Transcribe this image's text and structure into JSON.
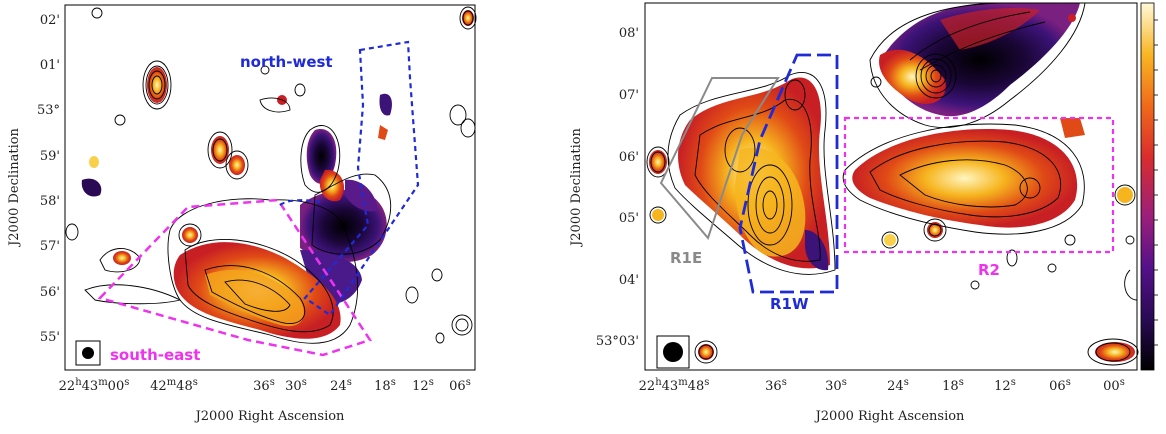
{
  "colors": {
    "blue": "#1f2bd6",
    "magenta": "#ee33ee",
    "grey": "#8a8a8a",
    "contour": "#000000"
  },
  "left_panel": {
    "y_ticks": [
      "02'",
      "01'",
      "53°",
      "59'",
      "58'",
      "57'",
      "56'",
      "55'"
    ],
    "y_label": "J2000 Declination",
    "x_ticks": [
      "22h43m00s",
      "42m48s",
      "36s",
      "30s",
      "24s",
      "18s",
      "12s",
      "06s"
    ],
    "x_label": "J2000 Right Ascension",
    "region_labels": {
      "north_west": "north-west",
      "south_east": "south-east"
    }
  },
  "right_panel": {
    "y_ticks": [
      "08'",
      "07'",
      "06'",
      "05'",
      "04'",
      "53°03'"
    ],
    "y_label": "J2000 Declination",
    "x_ticks": [
      "22h43m48s",
      "36s",
      "30s",
      "24s",
      "18s",
      "12s",
      "06s",
      "00s"
    ],
    "x_label": "J2000 Right Ascension",
    "region_labels": {
      "r1e": "R1E",
      "r1w": "R1W",
      "r2": "R2"
    }
  },
  "colorbar": {
    "gradient": [
      "#000000",
      "#2a0a55",
      "#55118a",
      "#9c1f7a",
      "#d92d2d",
      "#f06a1a",
      "#f8b624",
      "#fff9d8"
    ]
  }
}
